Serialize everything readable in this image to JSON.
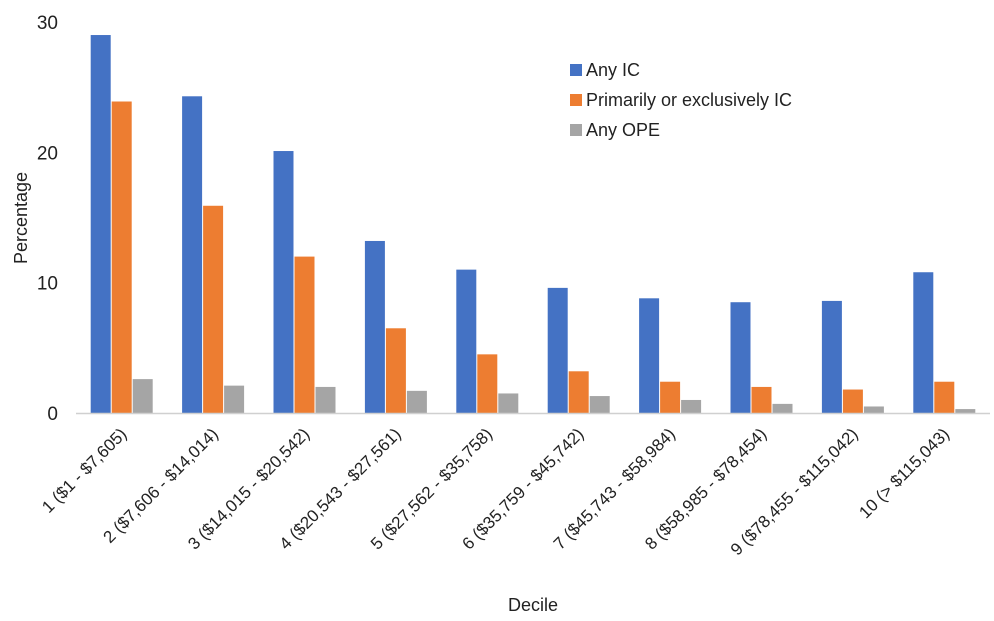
{
  "chart_data": {
    "type": "bar",
    "title": "",
    "xlabel": "Decile",
    "ylabel": "Percentage",
    "ylim": [
      0,
      30
    ],
    "yticks": [
      0,
      10,
      20,
      30
    ],
    "grid": false,
    "legend_position": "top-right",
    "categories": [
      "1 ($1 - $7,605)",
      "2 ($7,606 - $14,014)",
      "3 ($14,015 - $20,542)",
      "4 ($20,543 - $27,561)",
      "5 ($27,562 - $35,758)",
      "6 ($35,759 - $45,742)",
      "7 ($45,743 - $58,984)",
      "8 ($58,985 - $78,454)",
      "9 ($78,455 - $115,042)",
      "10 (> $115,043)"
    ],
    "series": [
      {
        "name": "Any IC",
        "color": "#4472C4",
        "values": [
          29.0,
          24.3,
          20.1,
          13.2,
          11.0,
          9.6,
          8.8,
          8.5,
          8.6,
          10.8
        ]
      },
      {
        "name": "Primarily or exclusively IC",
        "color": "#ED7D31",
        "values": [
          23.9,
          15.9,
          12.0,
          6.5,
          4.5,
          3.2,
          2.4,
          2.0,
          1.8,
          2.4
        ]
      },
      {
        "name": "Any OPE",
        "color": "#A5A5A5",
        "values": [
          2.6,
          2.1,
          2.0,
          1.7,
          1.5,
          1.3,
          1.0,
          0.7,
          0.5,
          0.3
        ]
      }
    ]
  }
}
